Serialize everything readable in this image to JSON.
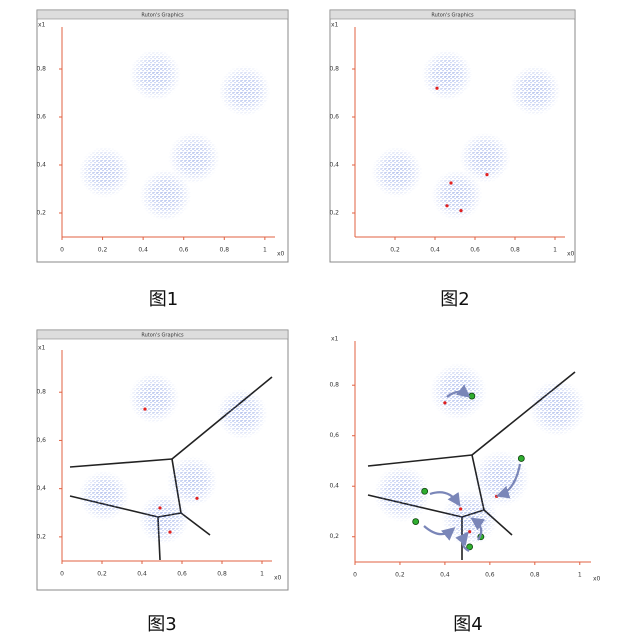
{
  "chart_data": [
    {
      "type": "scatter",
      "window_title": "Ruton's Graphics",
      "caption": "图1",
      "x_label": "x0",
      "y_label": "x1",
      "xlim": [
        0,
        1.05
      ],
      "ylim": [
        0.1,
        0.975
      ],
      "xticks": [
        0,
        {
          "value": 0.2,
          "label": "0,2"
        },
        {
          "value": 0.4,
          "label": "0,4"
        },
        {
          "value": 0.6,
          "label": "0,6"
        },
        {
          "value": 0.8,
          "label": "0,8"
        },
        1
      ],
      "yticks": [
        {
          "value": 0.2,
          "label": "0,2"
        },
        {
          "value": 0.4,
          "label": "0,4"
        },
        {
          "value": 0.6,
          "label": "0,6"
        },
        {
          "value": 0.8,
          "label": "0,8"
        }
      ],
      "series": [
        {
          "marker": "cloud",
          "color": "#3a5fd0",
          "x": [
            0.46,
            0.9,
            0.21,
            0.65,
            0.51
          ],
          "values": [
            0.775,
            0.71,
            0.37,
            0.43,
            0.275
          ]
        }
      ]
    },
    {
      "type": "scatter",
      "window_title": "Ruton's Graphics",
      "caption": "图2",
      "x_label": "x0",
      "y_label": "x1",
      "xlim": [
        0,
        1.05
      ],
      "ylim": [
        0.1,
        0.975
      ],
      "xticks": [
        {
          "value": 0.2,
          "label": "0,2"
        },
        {
          "value": 0.4,
          "label": "0,4"
        },
        {
          "value": 0.6,
          "label": "0,6"
        },
        {
          "value": 0.8,
          "label": "0,8"
        },
        1
      ],
      "yticks": [
        {
          "value": 0.2,
          "label": "0,2"
        },
        {
          "value": 0.4,
          "label": "0,4"
        },
        {
          "value": 0.6,
          "label": "0,6"
        },
        {
          "value": 0.8,
          "label": "0,8"
        }
      ],
      "series": [
        {
          "marker": "cloud",
          "color": "#3a5fd0",
          "x": [
            0.46,
            0.9,
            0.21,
            0.65,
            0.51
          ],
          "values": [
            0.775,
            0.71,
            0.37,
            0.43,
            0.275
          ]
        },
        {
          "marker": "dot",
          "color": "#e02020",
          "x": [
            0.41,
            0.48,
            0.46,
            0.53,
            0.66
          ],
          "values": [
            0.72,
            0.325,
            0.23,
            0.21,
            0.36
          ]
        }
      ]
    },
    {
      "type": "scatter",
      "window_title": "Ruton's Graphics",
      "caption": "图3",
      "x_label": "x0",
      "y_label": "x1",
      "xlim": [
        0,
        1.05
      ],
      "ylim": [
        0.1,
        0.975
      ],
      "xticks": [
        0,
        {
          "value": 0.2,
          "label": "0,2"
        },
        {
          "value": 0.4,
          "label": "0,4"
        },
        {
          "value": 0.6,
          "label": "0,6"
        },
        {
          "value": 0.8,
          "label": "0,8"
        },
        1
      ],
      "yticks": [
        {
          "value": 0.2,
          "label": "0,2"
        },
        {
          "value": 0.4,
          "label": "0,4"
        },
        {
          "value": 0.6,
          "label": "0,6"
        },
        {
          "value": 0.8,
          "label": "0,8"
        }
      ],
      "series": [
        {
          "marker": "cloud",
          "color": "#3a5fd0",
          "x": [
            0.46,
            0.9,
            0.21,
            0.65,
            0.51
          ],
          "values": [
            0.775,
            0.71,
            0.37,
            0.43,
            0.275
          ]
        },
        {
          "marker": "dot",
          "color": "#e02020",
          "x": [
            0.415,
            0.49,
            0.54,
            0.675
          ],
          "values": [
            0.73,
            0.32,
            0.22,
            0.36
          ]
        }
      ]
    },
    {
      "type": "scatter",
      "caption": "图4",
      "x_label": "x0",
      "y_label": "x1",
      "xlim": [
        0,
        1.05
      ],
      "ylim": [
        0.1,
        0.975
      ],
      "xticks": [
        0,
        {
          "value": 0.2,
          "label": "0,2"
        },
        {
          "value": 0.4,
          "label": "0,4"
        },
        {
          "value": 0.6,
          "label": "0,6"
        },
        {
          "value": 0.8,
          "label": "0,8"
        },
        1
      ],
      "yticks": [
        {
          "value": 0.2,
          "label": "0,2"
        },
        {
          "value": 0.4,
          "label": "0,4"
        },
        {
          "value": 0.6,
          "label": "0,6"
        },
        {
          "value": 0.8,
          "label": "0,8"
        }
      ],
      "series": [
        {
          "marker": "cloud",
          "color": "#3a5fd0",
          "x": [
            0.46,
            0.9,
            0.21,
            0.65,
            0.51
          ],
          "values": [
            0.775,
            0.71,
            0.37,
            0.43,
            0.275
          ]
        },
        {
          "marker": "dot",
          "color": "#e02020",
          "x": [
            0.4,
            0.47,
            0.51,
            0.63
          ],
          "values": [
            0.73,
            0.31,
            0.22,
            0.36
          ]
        },
        {
          "marker": "ring",
          "color": "#2fae2f",
          "x": [
            0.52,
            0.74,
            0.31,
            0.27,
            0.56,
            0.51
          ],
          "values": [
            0.757,
            0.51,
            0.38,
            0.26,
            0.2,
            0.16
          ]
        }
      ]
    }
  ]
}
